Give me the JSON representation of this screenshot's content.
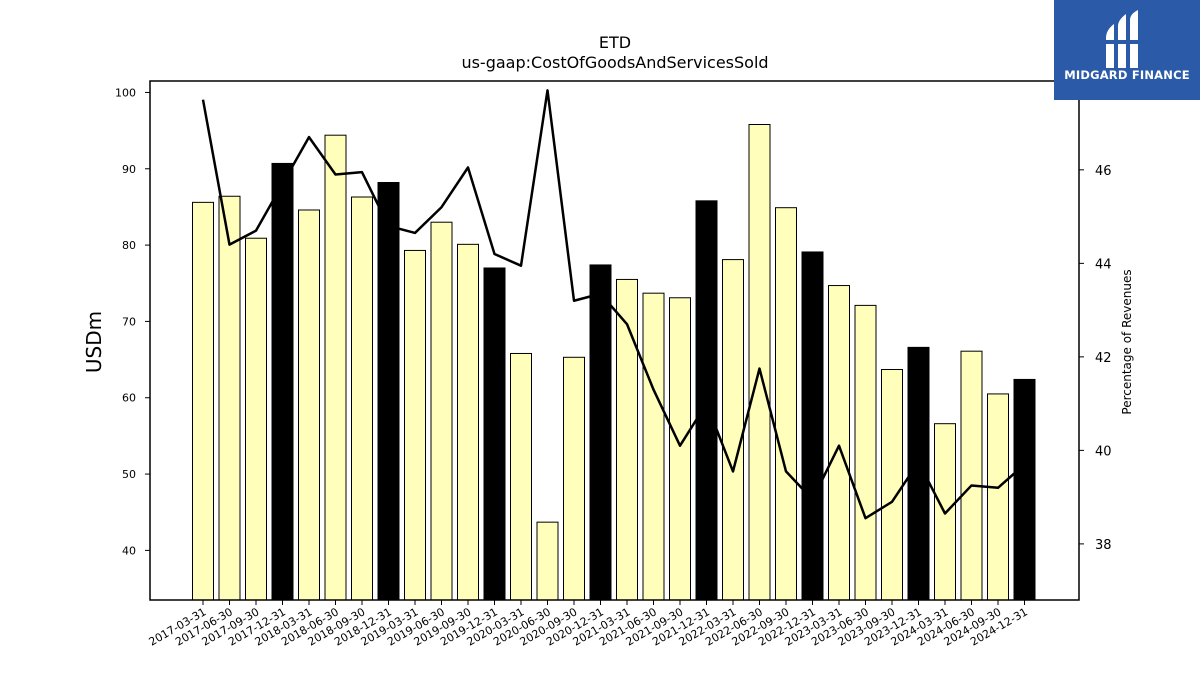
{
  "brand": {
    "name": "MIDGARD FINANCE",
    "color": "#2b5aa8",
    "icon": "midgard-logo-icon"
  },
  "chart_data": {
    "type": "bar+line",
    "title": "ETD",
    "subtitle": "us-gaap:CostOfGoodsAndServicesSold",
    "ylabel": "USDm",
    "y2label": "Percentage of Revenues",
    "ylim": [
      33.5,
      101.5
    ],
    "y2lim": [
      36.8,
      47.9
    ],
    "yticks": [
      40,
      50,
      60,
      70,
      80,
      90,
      100
    ],
    "y2ticks": [
      38,
      40,
      42,
      44,
      46
    ],
    "grid": false,
    "categories": [
      "2017-03-31",
      "2017-06-30",
      "2017-09-30",
      "2017-12-31",
      "2018-03-31",
      "2018-06-30",
      "2018-09-30",
      "2018-12-31",
      "2019-03-31",
      "2019-06-30",
      "2019-09-30",
      "2019-12-31",
      "2020-03-31",
      "2020-06-30",
      "2020-09-30",
      "2020-12-31",
      "2021-03-31",
      "2021-06-30",
      "2021-09-30",
      "2021-12-31",
      "2022-03-31",
      "2022-06-30",
      "2022-09-30",
      "2022-12-31",
      "2023-03-31",
      "2023-06-30",
      "2023-09-30",
      "2023-12-31",
      "2024-03-31",
      "2024-06-30",
      "2024-09-30",
      "2024-12-31"
    ],
    "series": [
      {
        "type": "bar",
        "values": [
          85.6,
          86.4,
          80.9,
          90.7,
          84.6,
          94.4,
          86.3,
          88.2,
          79.3,
          83.0,
          80.1,
          77.0,
          65.8,
          43.7,
          65.3,
          77.4,
          75.5,
          73.7,
          73.1,
          85.8,
          78.1,
          95.8,
          84.9,
          79.1,
          74.7,
          72.1,
          63.7,
          66.6,
          56.6,
          66.1,
          60.5,
          62.4
        ],
        "colors": [
          "#ffffbb",
          "#ffffbb",
          "#ffffbb",
          "#000000",
          "#ffffbb",
          "#ffffbb",
          "#ffffbb",
          "#000000",
          "#ffffbb",
          "#ffffbb",
          "#ffffbb",
          "#000000",
          "#ffffbb",
          "#ffffbb",
          "#ffffbb",
          "#000000",
          "#ffffbb",
          "#ffffbb",
          "#ffffbb",
          "#000000",
          "#ffffbb",
          "#ffffbb",
          "#ffffbb",
          "#000000",
          "#ffffbb",
          "#ffffbb",
          "#ffffbb",
          "#000000",
          "#ffffbb",
          "#ffffbb",
          "#ffffbb",
          "#000000"
        ]
      },
      {
        "type": "line",
        "axis": "right",
        "color": "#000000",
        "values": [
          47.5,
          44.4,
          44.7,
          45.7,
          46.7,
          45.9,
          45.95,
          44.8,
          44.65,
          45.2,
          46.05,
          44.2,
          43.95,
          47.7,
          43.2,
          43.35,
          42.7,
          41.3,
          40.1,
          41.0,
          39.55,
          41.75,
          39.55,
          38.95,
          40.1,
          38.55,
          38.9,
          39.75,
          38.65,
          39.25,
          39.2,
          39.7
        ]
      }
    ]
  }
}
